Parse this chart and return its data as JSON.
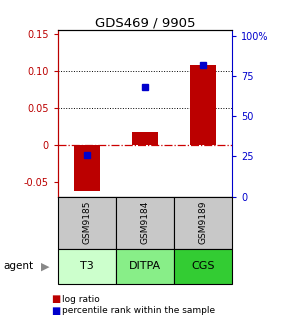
{
  "title": "GDS469 / 9905",
  "categories": [
    "T3",
    "DITPA",
    "CGS"
  ],
  "gsm_labels": [
    "GSM9185",
    "GSM9184",
    "GSM9189"
  ],
  "log_ratios": [
    -0.062,
    0.018,
    0.108
  ],
  "percentile_ranks": [
    0.26,
    0.68,
    0.82
  ],
  "ylim_left": [
    -0.07,
    0.155
  ],
  "ylim_right": [
    0.0,
    1.033
  ],
  "yticks_left": [
    -0.05,
    0.0,
    0.05,
    0.1,
    0.15
  ],
  "yticks_right": [
    0.0,
    0.25,
    0.5,
    0.75,
    1.0
  ],
  "ytick_labels_left": [
    "-0.05",
    "0",
    "0.05",
    "0.10",
    "0.15"
  ],
  "ytick_labels_right": [
    "0",
    "25",
    "50",
    "75",
    "100%"
  ],
  "bar_color_red": "#bb0000",
  "bar_color_blue": "#0000cc",
  "zero_line_color": "#cc0000",
  "gsm_bg_color": "#c8c8c8",
  "agent_bg_colors": [
    "#ccffcc",
    "#88ee88",
    "#33cc33"
  ],
  "bar_width": 0.45,
  "legend_red_label": "log ratio",
  "legend_blue_label": "percentile rank within the sample",
  "background_color": "#ffffff"
}
